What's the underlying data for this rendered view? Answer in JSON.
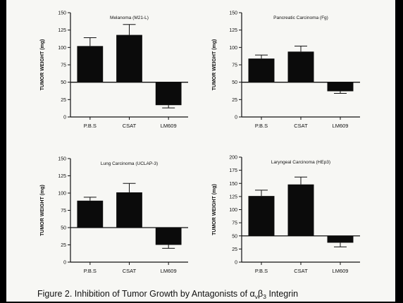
{
  "caption": {
    "text": "Figure 2.  Inhibition of Tumor Growth by Antagonists of α",
    "sub1": "v",
    "mid": "β",
    "sub2": "3",
    "tail": " Integrin"
  },
  "chart_data": [
    {
      "type": "bar",
      "title": "Melanoma (M21-L)",
      "ylabel": "TUMOR WEIGHT (mg)",
      "categories": [
        "P.B.S",
        "CSAT",
        "LM609"
      ],
      "values": [
        102,
        118,
        17
      ],
      "error": [
        12,
        15,
        4
      ],
      "ylim": [
        0,
        150
      ],
      "yticks": [
        0,
        25,
        50,
        75,
        100,
        125,
        150
      ],
      "baseline": 50
    },
    {
      "type": "bar",
      "title": "Pancreatic Carcinoma (Fg)",
      "ylabel": "TUMOR WEIGHT (mg)",
      "categories": [
        "P.B.S",
        "CSAT",
        "LM609"
      ],
      "values": [
        84,
        94,
        37
      ],
      "error": [
        5,
        8,
        3
      ],
      "ylim": [
        0,
        150
      ],
      "yticks": [
        0,
        25,
        50,
        75,
        100,
        125,
        150
      ],
      "baseline": 50
    },
    {
      "type": "bar",
      "title": "Lung Carcinoma (UCLAP-3)",
      "ylabel": "TUMOR WEIGHT (mg)",
      "categories": [
        "P.B.S",
        "CSAT",
        "LM609"
      ],
      "values": [
        89,
        101,
        25
      ],
      "error": [
        5,
        13,
        5
      ],
      "ylim": [
        0,
        150
      ],
      "yticks": [
        0,
        25,
        50,
        75,
        100,
        125,
        150
      ],
      "baseline": 50
    },
    {
      "type": "bar",
      "title": "Laryngeal Carcinoma (HEp3)",
      "ylabel": "TUMOR WEIGHT (mg)",
      "categories": [
        "P.B.S",
        "CSAT",
        "LM609"
      ],
      "values": [
        126,
        148,
        37
      ],
      "error": [
        11,
        14,
        8
      ],
      "ylim": [
        0,
        200
      ],
      "yticks": [
        0,
        25,
        50,
        75,
        100,
        125,
        150,
        175,
        200
      ],
      "baseline": 50
    }
  ]
}
